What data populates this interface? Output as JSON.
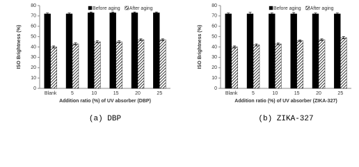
{
  "chart_data": [
    {
      "type": "bar",
      "caption": "(a) DBP",
      "xlabel": "Addition ratio (%) of UV absorber (DBP)",
      "ylabel": "ISO Brightness (%)",
      "categories": [
        "Blank",
        "5",
        "10",
        "15",
        "20",
        "25"
      ],
      "series": [
        {
          "name": "Before aging",
          "color": "#000000",
          "pattern": "solid",
          "values": [
            72,
            72,
            73,
            73,
            73,
            73
          ],
          "errors": [
            0.8,
            0.8,
            0.8,
            0.8,
            0.8,
            0.8
          ]
        },
        {
          "name": "After aging",
          "color": "#000000",
          "pattern": "hatch",
          "values": [
            40,
            43,
            45,
            45,
            47,
            47
          ],
          "errors": [
            1,
            1,
            1,
            1,
            0.8,
            0.8
          ]
        }
      ],
      "ylim": [
        0,
        80
      ],
      "yticks": [
        0,
        10,
        20,
        30,
        40,
        50,
        60,
        70,
        80
      ],
      "legend": "top"
    },
    {
      "type": "bar",
      "caption": "(b) ZIKA-327",
      "xlabel": "Addition ratio (%) of UV absorber (ZIKA-327)",
      "ylabel": "ISO Brightness (%)",
      "categories": [
        "Blank",
        "5",
        "10",
        "15",
        "20",
        "25"
      ],
      "series": [
        {
          "name": "Before aging",
          "color": "#000000",
          "pattern": "solid",
          "values": [
            72,
            72,
            72,
            72,
            72,
            72
          ],
          "errors": [
            0.8,
            1.5,
            0.8,
            1.2,
            0.8,
            0.8
          ]
        },
        {
          "name": "After aging",
          "color": "#000000",
          "pattern": "hatch",
          "values": [
            40,
            42,
            43,
            46,
            47,
            49
          ],
          "errors": [
            1,
            1,
            0.8,
            0.8,
            0.8,
            1
          ]
        }
      ],
      "ylim": [
        0,
        80
      ],
      "yticks": [
        0,
        10,
        20,
        30,
        40,
        50,
        60,
        70,
        80
      ],
      "legend": "top"
    }
  ]
}
